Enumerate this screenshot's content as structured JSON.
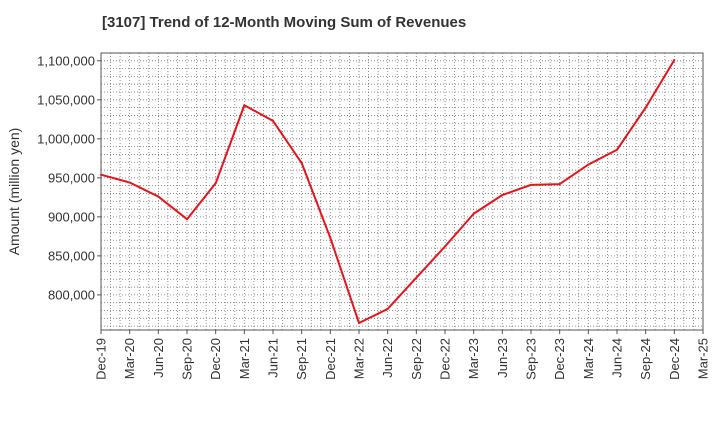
{
  "chart_data": {
    "type": "line",
    "title": "[3107]  Trend of 12-Month Moving Sum of Revenues",
    "xlabel": "",
    "ylabel": "Amount (million yen)",
    "ylim": [
      755000,
      1110000
    ],
    "y_ticks": [
      800000,
      850000,
      900000,
      950000,
      1000000,
      1050000,
      1100000
    ],
    "y_tick_labels": [
      "800,000",
      "850,000",
      "900,000",
      "950,000",
      "1,000,000",
      "1,050,000",
      "1,100,000"
    ],
    "x_tick_labels": [
      "Dec-19",
      "Mar-20",
      "Jun-20",
      "Sep-20",
      "Dec-20",
      "Mar-21",
      "Jun-21",
      "Sep-21",
      "Dec-21",
      "Mar-22",
      "Jun-22",
      "Sep-22",
      "Dec-22",
      "Mar-23",
      "Jun-23",
      "Sep-23",
      "Dec-23",
      "Mar-24",
      "Jun-24",
      "Sep-24",
      "Dec-24",
      "Mar-25"
    ],
    "grid": true,
    "line_color": "#e8141c",
    "series": [
      {
        "x": [
          "Dec-19",
          "Mar-20",
          "Jun-20",
          "Sep-20",
          "Dec-20",
          "Mar-21",
          "Jun-21",
          "Sep-21",
          "Dec-21",
          "Mar-22",
          "Jun-22",
          "Sep-22",
          "Dec-22",
          "Mar-23",
          "Jun-23",
          "Sep-23",
          "Dec-23",
          "Mar-24",
          "Jun-24",
          "Sep-24",
          "Dec-24"
        ],
        "values": [
          954000,
          944000,
          926000,
          897000,
          943000,
          1043000,
          1023000,
          969000,
          873000,
          764000,
          782000,
          822000,
          862000,
          904000,
          928000,
          941000,
          942000,
          967000,
          986000,
          1040000,
          1101000
        ]
      }
    ]
  }
}
